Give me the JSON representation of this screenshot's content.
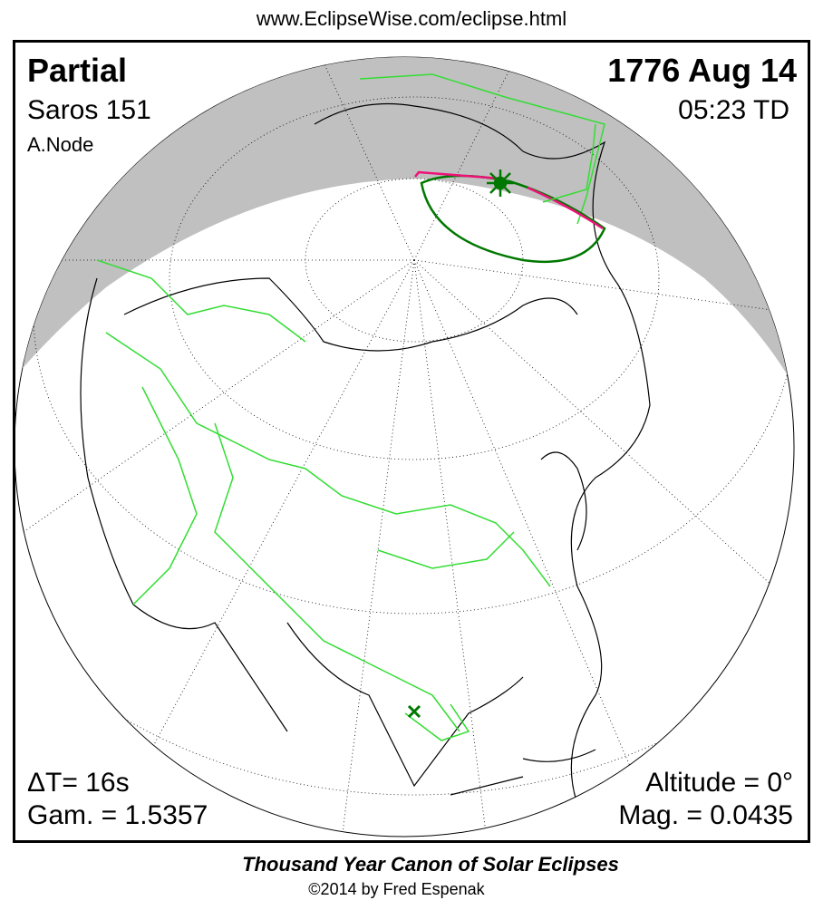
{
  "url": "www.EclipseWise.com/eclipse.html",
  "eclipse_type": "Partial",
  "date": "1776 Aug 14",
  "saros": "Saros 151",
  "time": "05:23 TD",
  "node": "A.Node",
  "delta_t": "ΔT=     16s",
  "gamma": "Gam. = 1.5357",
  "altitude": "Altitude =  0°",
  "magnitude": "Mag. = 0.0435",
  "footer_title": "Thousand Year Canon of Solar Eclipses",
  "copyright": "©2014 by Fred Espenak",
  "colors": {
    "night": "#c0c0c0",
    "borders": "#33dd33",
    "eclipse_limits": "#007700",
    "path": "#ee1177",
    "coast": "#000000"
  }
}
